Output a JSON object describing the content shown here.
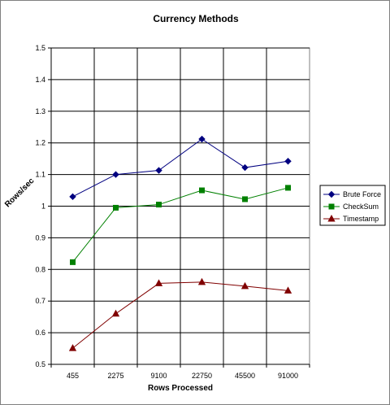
{
  "chart_data": {
    "type": "line",
    "title": "Currency Methods",
    "xlabel": "Rows Processed",
    "ylabel": "Rows/sec",
    "categories": [
      "455",
      "2275",
      "9100",
      "22750",
      "45500",
      "91000"
    ],
    "ylim": [
      0.5,
      1.5
    ],
    "yticks": [
      "0.5",
      "0.6",
      "0.7",
      "0.8",
      "0.9",
      "1",
      "1.1",
      "1.2",
      "1.3",
      "1.4",
      "1.5"
    ],
    "grid": true,
    "legend_position": "right",
    "series": [
      {
        "name": "Brute Force",
        "values": [
          1.03,
          1.1,
          1.113,
          1.212,
          1.122,
          1.142
        ],
        "color": "#000080",
        "marker": "diamond"
      },
      {
        "name": "CheckSum",
        "values": [
          0.823,
          0.995,
          1.005,
          1.05,
          1.022,
          1.058
        ],
        "color": "#008000",
        "marker": "square"
      },
      {
        "name": "Timestamp",
        "values": [
          0.551,
          0.66,
          0.756,
          0.76,
          0.747,
          0.733
        ],
        "color": "#800000",
        "marker": "triangle"
      }
    ]
  }
}
